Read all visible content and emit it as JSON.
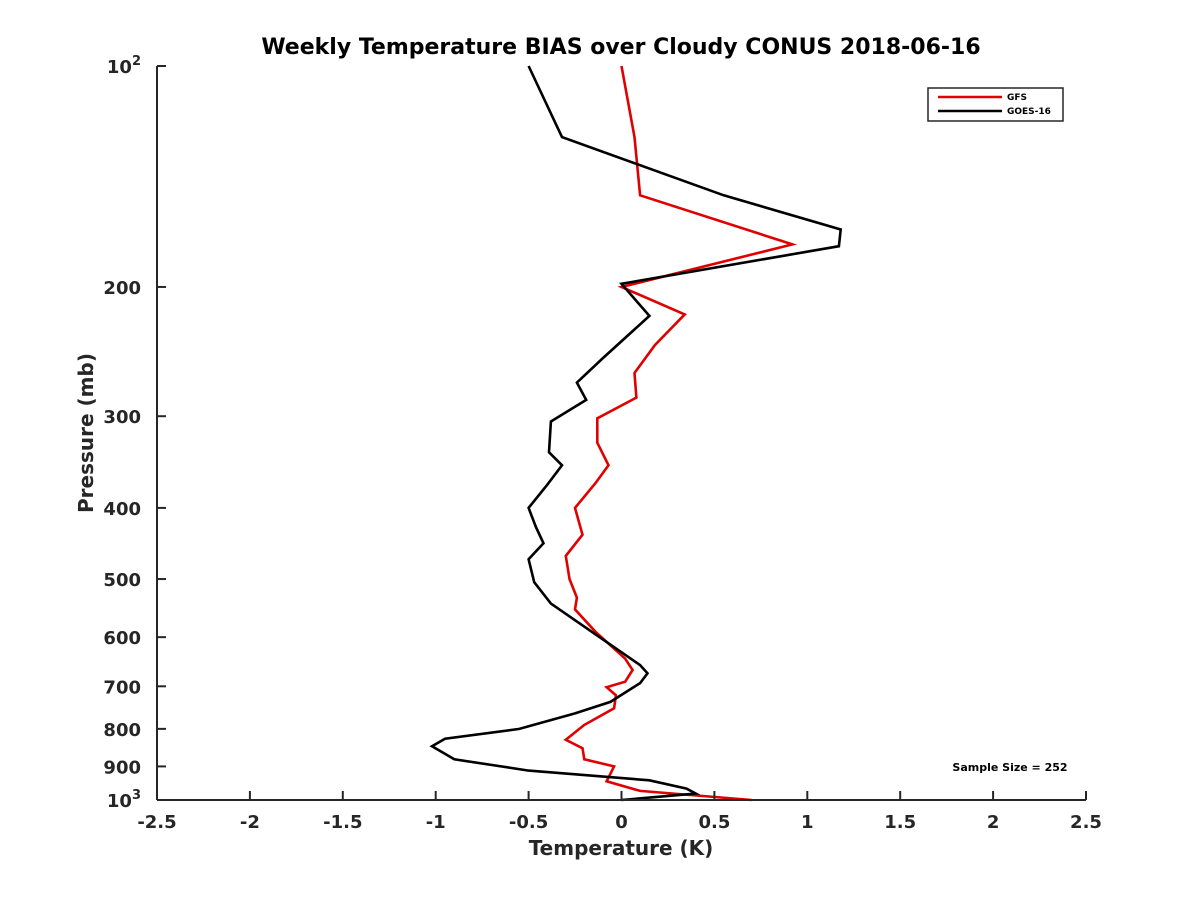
{
  "chart_data": {
    "type": "line",
    "title": "Weekly Temperature BIAS over Cloudy CONUS 2018-06-16",
    "xlabel": "Temperature (K)",
    "ylabel": "Pressure (mb)",
    "xlim": [
      -2.5,
      2.5
    ],
    "ylim": [
      100,
      1000
    ],
    "y_scale": "log",
    "y_reversed": true,
    "x_ticks": [
      "-2.5",
      "-2",
      "-1.5",
      "-1",
      "-0.5",
      "0",
      "0.5",
      "1",
      "1.5",
      "2",
      "2.5"
    ],
    "x_tick_values": [
      -2.5,
      -2,
      -1.5,
      -1,
      -0.5,
      0,
      0.5,
      1,
      1.5,
      2,
      2.5
    ],
    "y_ticks": [
      {
        "value": 100,
        "base": "10",
        "exp": "2"
      },
      {
        "value": 200,
        "base": "200",
        "exp": ""
      },
      {
        "value": 300,
        "base": "300",
        "exp": ""
      },
      {
        "value": 400,
        "base": "400",
        "exp": ""
      },
      {
        "value": 500,
        "base": "500",
        "exp": ""
      },
      {
        "value": 600,
        "base": "600",
        "exp": ""
      },
      {
        "value": 700,
        "base": "700",
        "exp": ""
      },
      {
        "value": 800,
        "base": "800",
        "exp": ""
      },
      {
        "value": 900,
        "base": "900",
        "exp": ""
      },
      {
        "value": 1000,
        "base": "10",
        "exp": "3"
      }
    ],
    "grid": false,
    "legend_position": "top-right",
    "annotation": "Sample Size = 252",
    "series": [
      {
        "name": "GFS",
        "color": "#e00000",
        "points": [
          [
            0.0,
            100
          ],
          [
            0.07,
            125
          ],
          [
            0.1,
            150
          ],
          [
            0.92,
            175
          ],
          [
            0.0,
            200
          ],
          [
            0.34,
            218
          ],
          [
            0.18,
            240
          ],
          [
            0.07,
            262
          ],
          [
            0.08,
            283
          ],
          [
            -0.13,
            302
          ],
          [
            -0.13,
            326
          ],
          [
            -0.07,
            350
          ],
          [
            -0.14,
            370
          ],
          [
            -0.25,
            400
          ],
          [
            -0.21,
            435
          ],
          [
            -0.3,
            465
          ],
          [
            -0.28,
            500
          ],
          [
            -0.24,
            530
          ],
          [
            -0.25,
            550
          ],
          [
            -0.14,
            590
          ],
          [
            0.02,
            642
          ],
          [
            0.06,
            665
          ],
          [
            0.02,
            690
          ],
          [
            -0.08,
            702
          ],
          [
            -0.03,
            720
          ],
          [
            -0.04,
            750
          ],
          [
            -0.2,
            790
          ],
          [
            -0.3,
            828
          ],
          [
            -0.21,
            850
          ],
          [
            -0.2,
            880
          ],
          [
            -0.04,
            900
          ],
          [
            -0.08,
            943
          ],
          [
            0.1,
            972
          ],
          [
            0.7,
            1000
          ]
        ]
      },
      {
        "name": "GOES-16",
        "color": "#000000",
        "points": [
          [
            -0.5,
            100
          ],
          [
            -0.32,
            125
          ],
          [
            0.55,
            150
          ],
          [
            1.18,
            167
          ],
          [
            1.17,
            176
          ],
          [
            0.0,
            198
          ],
          [
            0.15,
            219
          ],
          [
            -0.1,
            250
          ],
          [
            -0.24,
            270
          ],
          [
            -0.19,
            285
          ],
          [
            -0.38,
            305
          ],
          [
            -0.39,
            336
          ],
          [
            -0.32,
            350
          ],
          [
            -0.4,
            372
          ],
          [
            -0.5,
            400
          ],
          [
            -0.46,
            425
          ],
          [
            -0.42,
            447
          ],
          [
            -0.5,
            470
          ],
          [
            -0.47,
            505
          ],
          [
            -0.38,
            540
          ],
          [
            0.05,
            642
          ],
          [
            0.1,
            655
          ],
          [
            0.14,
            672
          ],
          [
            0.1,
            693
          ],
          [
            -0.06,
            735
          ],
          [
            -0.25,
            762
          ],
          [
            -0.55,
            800
          ],
          [
            -0.95,
            825
          ],
          [
            -1.02,
            845
          ],
          [
            -0.9,
            880
          ],
          [
            -0.5,
            912
          ],
          [
            0.15,
            940
          ],
          [
            0.35,
            965
          ],
          [
            0.4,
            980
          ],
          [
            0.0,
            1000
          ]
        ]
      }
    ]
  }
}
